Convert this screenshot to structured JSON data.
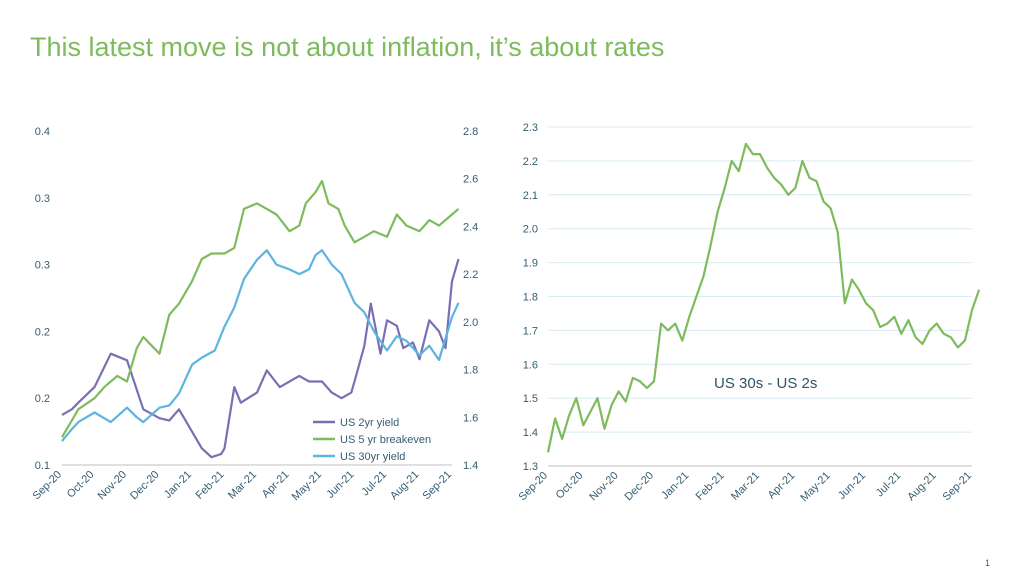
{
  "slide": {
    "title": "This latest move is not about inflation, it’s about rates",
    "page_number": "1"
  },
  "chart_data": [
    {
      "type": "line",
      "x_ticks": [
        "Sep-20",
        "Oct-20",
        "Nov-20",
        "Dec-20",
        "Jan-21",
        "Feb-21",
        "Mar-21",
        "Apr-21",
        "May-21",
        "Jun-21",
        "Jul-21",
        "Aug-21",
        "Sep-21"
      ],
      "y_left_ticks": [
        "0.1",
        "0.2",
        "0.2",
        "0.3",
        "0.3",
        "0.4"
      ],
      "y_left_lim": [
        0.1,
        0.4
      ],
      "y_right_ticks": [
        "1.4",
        "1.6",
        "1.8",
        "2.0",
        "2.2",
        "2.4",
        "2.6",
        "2.8"
      ],
      "y_right_lim": [
        1.4,
        2.8
      ],
      "legend_position": "bottom-right",
      "series": [
        {
          "name": "US 2yr yield",
          "axis": "left",
          "color": "#7a6fb3",
          "x": [
            0,
            0.3,
            0.5,
            1,
            1.5,
            2,
            2.5,
            3,
            3.3,
            3.6,
            4,
            4.3,
            4.6,
            4.9,
            5,
            5.3,
            5.5,
            6,
            6.3,
            6.7,
            7,
            7.3,
            7.6,
            8,
            8.3,
            8.6,
            8.9,
            9,
            9.3,
            9.5,
            9.8,
            10,
            10.3,
            10.5,
            10.8,
            11,
            11.3,
            11.6,
            11.8,
            12,
            12.2
          ],
          "y": [
            0.145,
            0.15,
            0.156,
            0.17,
            0.2,
            0.194,
            0.15,
            0.142,
            0.14,
            0.15,
            0.13,
            0.115,
            0.107,
            0.11,
            0.115,
            0.17,
            0.156,
            0.165,
            0.185,
            0.17,
            0.175,
            0.18,
            0.175,
            0.175,
            0.165,
            0.16,
            0.165,
            0.175,
            0.207,
            0.245,
            0.2,
            0.23,
            0.225,
            0.205,
            0.21,
            0.195,
            0.23,
            0.22,
            0.205,
            0.265,
            0.285
          ]
        },
        {
          "name": "US 5 yr breakeven",
          "axis": "left",
          "color": "#7dbb5c",
          "x": [
            0,
            0.3,
            0.5,
            1,
            1.3,
            1.7,
            2,
            2.3,
            2.5,
            3,
            3.3,
            3.6,
            4,
            4.3,
            4.6,
            5,
            5.3,
            5.6,
            6,
            6.3,
            6.6,
            7,
            7.3,
            7.5,
            7.8,
            8,
            8.2,
            8.5,
            8.7,
            9,
            9.3,
            9.6,
            10,
            10.3,
            10.6,
            11,
            11.3,
            11.6,
            12,
            12.2
          ],
          "y": [
            0.125,
            0.14,
            0.15,
            0.16,
            0.17,
            0.18,
            0.175,
            0.205,
            0.215,
            0.2,
            0.235,
            0.245,
            0.265,
            0.285,
            0.29,
            0.29,
            0.295,
            0.33,
            0.335,
            0.33,
            0.325,
            0.31,
            0.315,
            0.335,
            0.345,
            0.355,
            0.335,
            0.33,
            0.315,
            0.3,
            0.305,
            0.31,
            0.305,
            0.325,
            0.315,
            0.31,
            0.32,
            0.315,
            0.325,
            0.33
          ]
        },
        {
          "name": "US 30yr yield",
          "axis": "right",
          "color": "#5db4e0",
          "x": [
            0,
            0.3,
            0.5,
            1,
            1.5,
            2,
            2.3,
            2.5,
            3,
            3.3,
            3.6,
            4,
            4.3,
            4.7,
            5,
            5.3,
            5.6,
            6,
            6.3,
            6.6,
            7,
            7.3,
            7.6,
            7.8,
            8,
            8.3,
            8.6,
            9,
            9.3,
            9.6,
            10,
            10.3,
            10.6,
            11,
            11.3,
            11.6,
            12,
            12.2
          ],
          "y": [
            1.5,
            1.55,
            1.58,
            1.62,
            1.58,
            1.64,
            1.6,
            1.58,
            1.64,
            1.65,
            1.7,
            1.82,
            1.85,
            1.88,
            1.98,
            2.06,
            2.18,
            2.26,
            2.3,
            2.24,
            2.22,
            2.2,
            2.22,
            2.28,
            2.3,
            2.24,
            2.2,
            2.08,
            2.04,
            1.96,
            1.88,
            1.94,
            1.92,
            1.86,
            1.9,
            1.84,
            2.02,
            2.08
          ]
        }
      ]
    },
    {
      "type": "line",
      "x_ticks": [
        "Sep-20",
        "Oct-20",
        "Nov-20",
        "Dec-20",
        "Jan-21",
        "Feb-21",
        "Mar-21",
        "Apr-21",
        "May-21",
        "Jun-21",
        "Jul-21",
        "Aug-21",
        "Sep-21"
      ],
      "y_ticks": [
        "1.3",
        "1.4",
        "1.5",
        "1.6",
        "1.7",
        "1.8",
        "1.9",
        "2.0",
        "2.1",
        "2.2",
        "2.3"
      ],
      "ylim": [
        1.3,
        2.3
      ],
      "grid": true,
      "annotation": "US 30s - US 2s",
      "series": [
        {
          "color": "#7dbb5c",
          "x": [
            0,
            0.2,
            0.4,
            0.6,
            0.8,
            1,
            1.2,
            1.4,
            1.6,
            1.8,
            2,
            2.2,
            2.4,
            2.6,
            2.8,
            3,
            3.2,
            3.4,
            3.6,
            3.8,
            4,
            4.2,
            4.4,
            4.6,
            4.8,
            5,
            5.2,
            5.4,
            5.6,
            5.8,
            6,
            6.2,
            6.4,
            6.6,
            6.8,
            7,
            7.2,
            7.4,
            7.6,
            7.8,
            8,
            8.2,
            8.4,
            8.6,
            8.8,
            9,
            9.2,
            9.4,
            9.6,
            9.8,
            10,
            10.2,
            10.4,
            10.6,
            10.8,
            11,
            11.2,
            11.4,
            11.6,
            11.8,
            12,
            12.2
          ],
          "y": [
            1.34,
            1.44,
            1.38,
            1.45,
            1.5,
            1.42,
            1.46,
            1.5,
            1.41,
            1.48,
            1.52,
            1.49,
            1.56,
            1.55,
            1.53,
            1.55,
            1.72,
            1.7,
            1.72,
            1.67,
            1.74,
            1.8,
            1.86,
            1.95,
            2.05,
            2.12,
            2.2,
            2.17,
            2.25,
            2.22,
            2.22,
            2.18,
            2.15,
            2.13,
            2.1,
            2.12,
            2.2,
            2.15,
            2.14,
            2.08,
            2.06,
            1.99,
            1.78,
            1.85,
            1.82,
            1.78,
            1.76,
            1.71,
            1.72,
            1.74,
            1.69,
            1.73,
            1.68,
            1.66,
            1.7,
            1.72,
            1.69,
            1.68,
            1.65,
            1.67,
            1.76,
            1.82
          ]
        }
      ]
    }
  ]
}
